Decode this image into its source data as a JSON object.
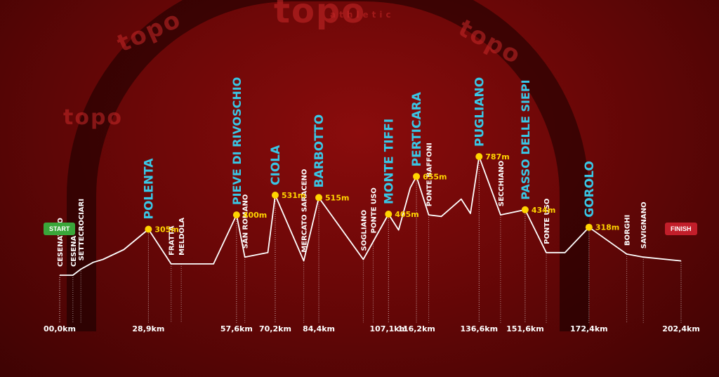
{
  "background": {
    "brand_text": "topo",
    "brand_sub": "athletic"
  },
  "colors": {
    "peak_name": "#39c7e6",
    "place_name": "#ffffff",
    "marker": "#ffd400",
    "elevation_label": "#ffd400",
    "profile_line": "#ffffff",
    "start": "#3aa63a",
    "finish": "#c21e2a"
  },
  "markers": {
    "start": "START",
    "finish": "FINISH"
  },
  "chart_data": {
    "type": "line",
    "x_unit": "km",
    "profile": [
      [
        0.0,
        0
      ],
      [
        4.3,
        0
      ],
      [
        6.9,
        40
      ],
      [
        10.9,
        85
      ],
      [
        14.1,
        105
      ],
      [
        20.9,
        170
      ],
      [
        28.9,
        305
      ],
      [
        36.3,
        75
      ],
      [
        50.1,
        75
      ],
      [
        57.6,
        400
      ],
      [
        60.3,
        120
      ],
      [
        67.8,
        150
      ],
      [
        70.2,
        531
      ],
      [
        79.5,
        95
      ],
      [
        84.4,
        515
      ],
      [
        98.9,
        105
      ],
      [
        107.1,
        405
      ],
      [
        110.4,
        300
      ],
      [
        114.2,
        580
      ],
      [
        116.2,
        655
      ],
      [
        120.2,
        400
      ],
      [
        124.3,
        390
      ],
      [
        130.8,
        505
      ],
      [
        133.8,
        410
      ],
      [
        136.6,
        787
      ],
      [
        143.6,
        400
      ],
      [
        151.6,
        434
      ],
      [
        158.5,
        150
      ],
      [
        164.6,
        150
      ],
      [
        172.4,
        318
      ],
      [
        184.7,
        140
      ],
      [
        190.1,
        120
      ],
      [
        202.4,
        95
      ]
    ],
    "peaks": [
      {
        "name": "POLENTA",
        "km": 28.9,
        "elevation_label": "305m"
      },
      {
        "name": "PIEVE DI RIVOSCHIO",
        "km": 57.6,
        "elevation_label": "400m"
      },
      {
        "name": "CIOLA",
        "km": 70.2,
        "elevation_label": "531m"
      },
      {
        "name": "BARBOTTO",
        "km": 84.4,
        "elevation_label": "515m"
      },
      {
        "name": "MONTE TIFFI",
        "km": 107.1,
        "elevation_label": "405m"
      },
      {
        "name": "PERTICARA",
        "km": 116.2,
        "elevation_label": "655m"
      },
      {
        "name": "PUGLIANO",
        "km": 136.6,
        "elevation_label": "787m"
      },
      {
        "name": "PASSO DELLE SIEPI",
        "km": 151.6,
        "elevation_label": "434m"
      },
      {
        "name": "GOROLO",
        "km": 172.4,
        "elevation_label": "318m"
      }
    ],
    "places": [
      {
        "name": "CESENATICO",
        "km": 0.0
      },
      {
        "name": "CESENA",
        "km": 4.3
      },
      {
        "name": "SETTECROCIARI",
        "km": 6.9
      },
      {
        "name": "FRATTA",
        "km": 36.3
      },
      {
        "name": "MELDOLA",
        "km": 39.6
      },
      {
        "name": "SAN ROMANO",
        "km": 60.3
      },
      {
        "name": "MERCATO SARACENO",
        "km": 79.5
      },
      {
        "name": "SOGLIANO",
        "km": 98.9
      },
      {
        "name": "PONTE USO",
        "km": 102.1
      },
      {
        "name": "PONTE BAFFONI",
        "km": 120.2
      },
      {
        "name": "SECCHIANO",
        "km": 143.6
      },
      {
        "name": "PONTE USO",
        "km": 158.5
      },
      {
        "name": "BORGHI",
        "km": 184.7
      },
      {
        "name": "SAVIGNANO",
        "km": 190.1
      }
    ],
    "tick_labels": [
      {
        "km": 0.0,
        "label": "00,0km"
      },
      {
        "km": 28.9,
        "label": "28,9km"
      },
      {
        "km": 57.6,
        "label": "57,6km"
      },
      {
        "km": 70.2,
        "label": "70,2km"
      },
      {
        "km": 84.4,
        "label": "84,4km"
      },
      {
        "km": 107.1,
        "label": "107,1km"
      },
      {
        "km": 116.2,
        "label": "116,2km"
      },
      {
        "km": 136.6,
        "label": "136,6km"
      },
      {
        "km": 151.6,
        "label": "151,6km"
      },
      {
        "km": 172.4,
        "label": "172,4km"
      },
      {
        "km": 202.4,
        "label": "202,4km"
      }
    ],
    "xlim": [
      0,
      202.4
    ],
    "ylim": [
      0,
      787
    ],
    "grid": false
  }
}
